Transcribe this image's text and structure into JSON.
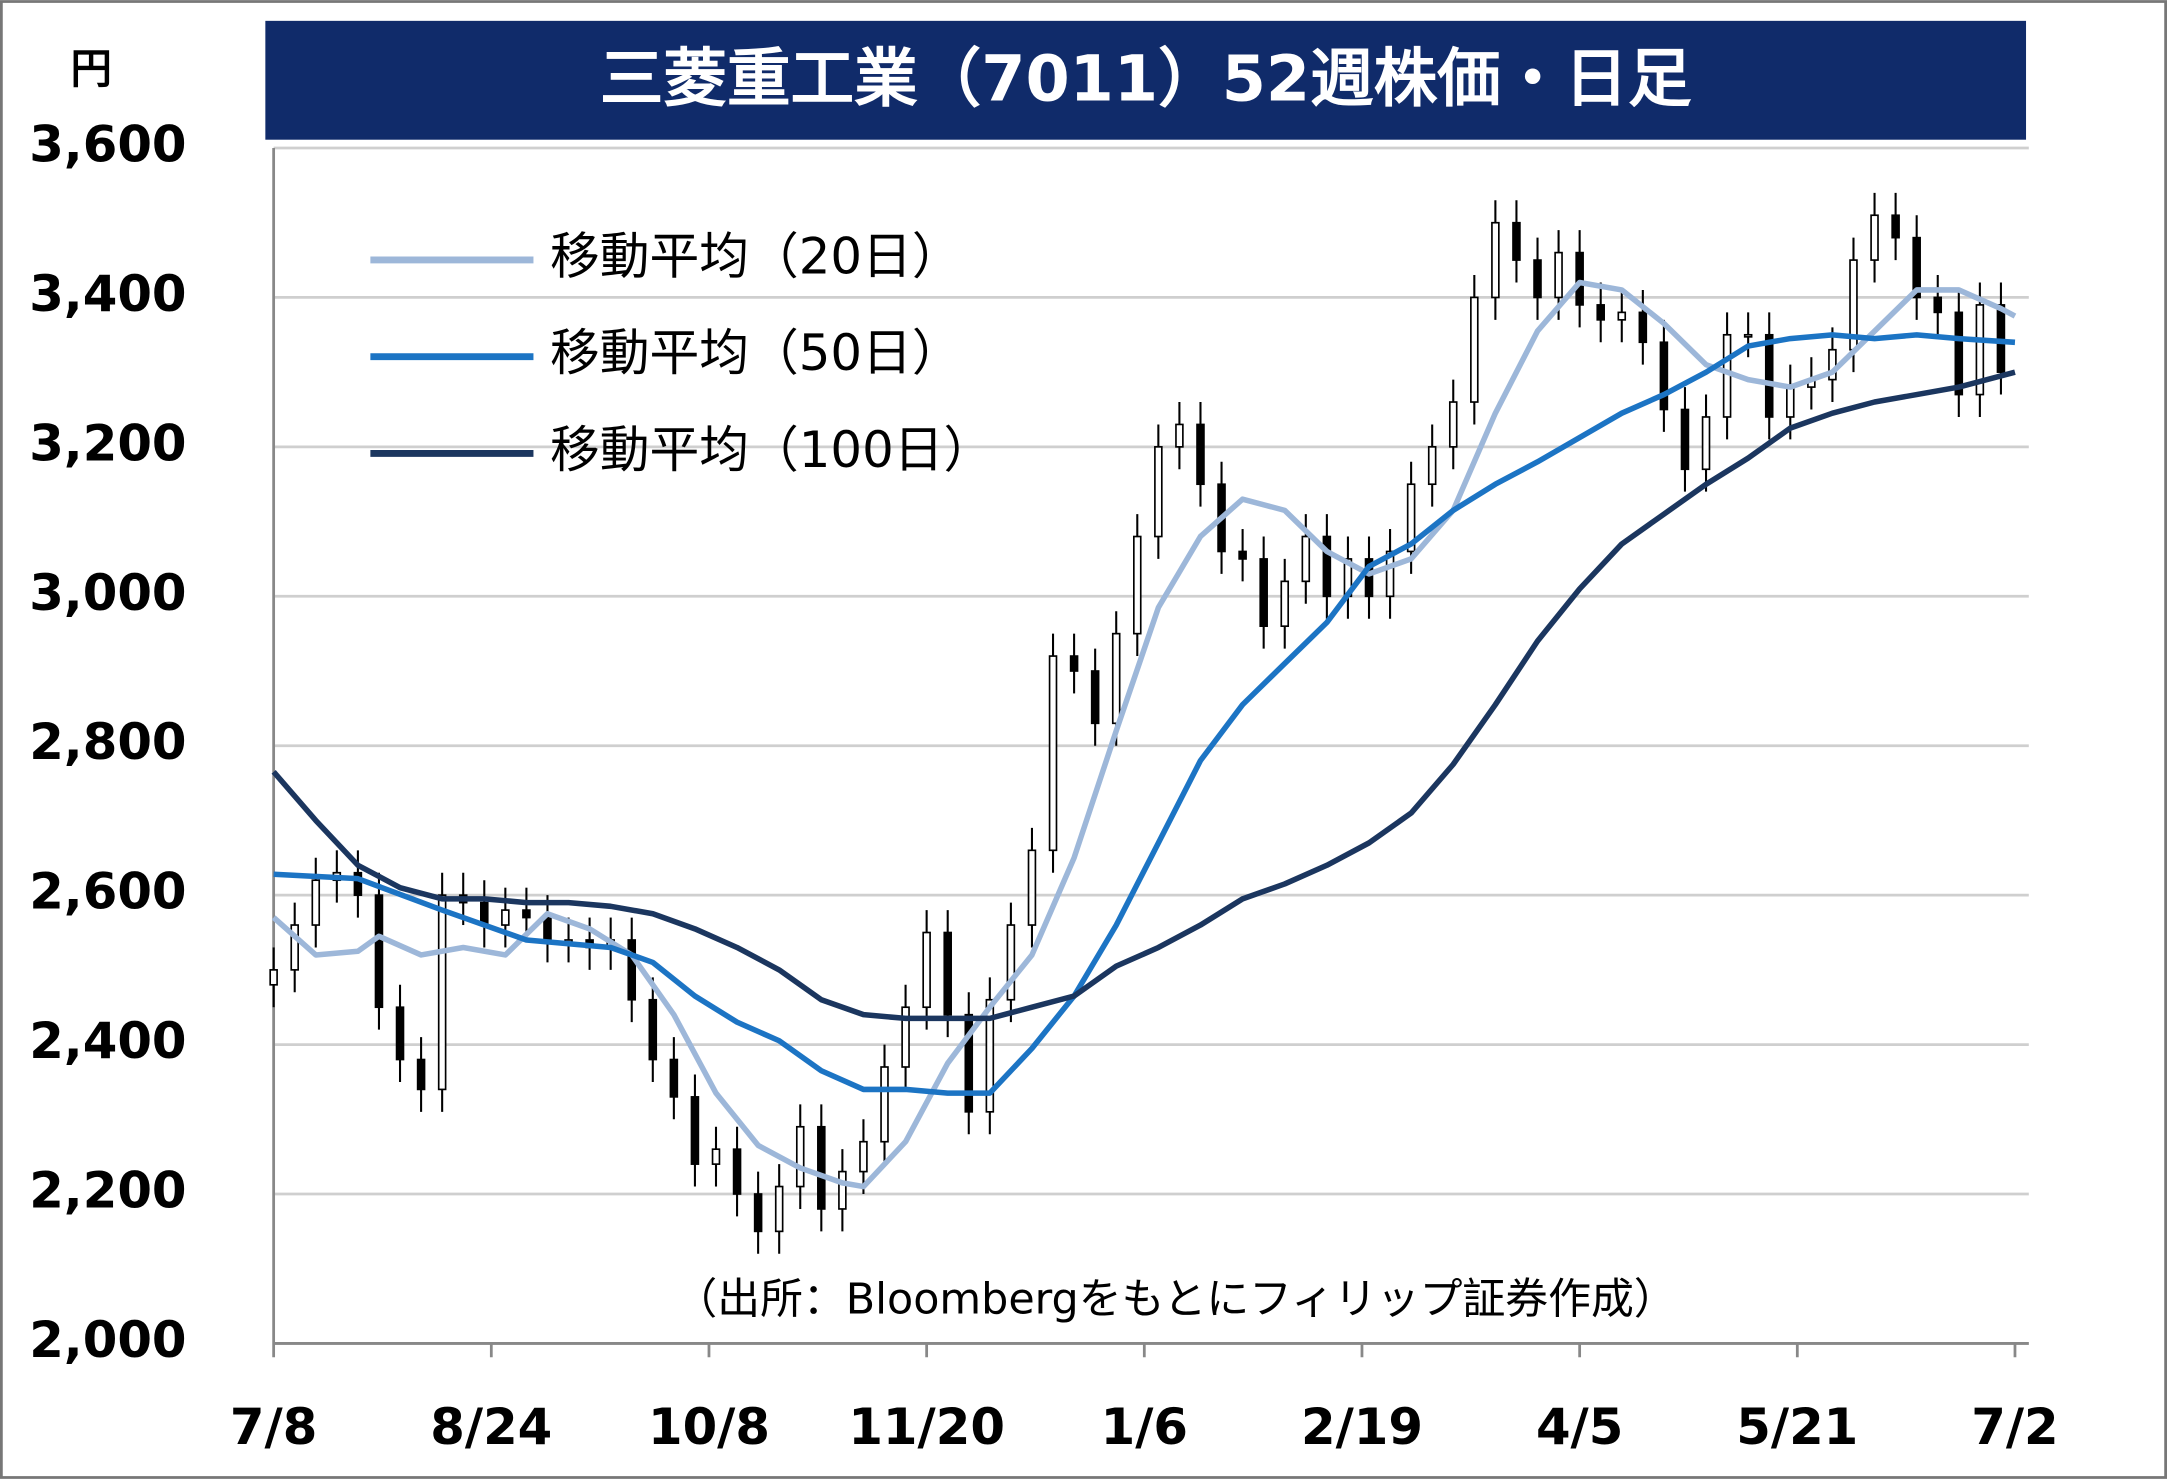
{
  "chart_data": {
    "type": "candlestick",
    "title": "三菱重工業（7011）52週株価・日足",
    "y_unit": "円",
    "source": "（出所：Bloombergをもとにフィリップ証券作成）",
    "xlim": [
      0,
      248
    ],
    "xticks": [
      {
        "value": 0,
        "label": "7/8"
      },
      {
        "value": 31,
        "label": "8/24"
      },
      {
        "value": 62,
        "label": "10/8"
      },
      {
        "value": 93,
        "label": "11/20"
      },
      {
        "value": 124,
        "label": "1/6"
      },
      {
        "value": 155,
        "label": "2/19"
      },
      {
        "value": 186,
        "label": "4/5"
      },
      {
        "value": 217,
        "label": "5/21"
      },
      {
        "value": 248,
        "label": "7/2"
      }
    ],
    "ylim": [
      2000,
      3600
    ],
    "yticks": [
      {
        "value": 2000,
        "label": "2,000"
      },
      {
        "value": 2200,
        "label": "2,200"
      },
      {
        "value": 2400,
        "label": "2,400"
      },
      {
        "value": 2600,
        "label": "2,600"
      },
      {
        "value": 2800,
        "label": "2,800"
      },
      {
        "value": 3000,
        "label": "3,000"
      },
      {
        "value": 3200,
        "label": "3,200"
      },
      {
        "value": 3400,
        "label": "3,400"
      },
      {
        "value": 3600,
        "label": "3,600"
      }
    ],
    "grid": true,
    "up_color": "#ffffff",
    "down_color": "#000000",
    "candles": {
      "x": [
        0,
        3,
        6,
        9,
        12,
        15,
        18,
        21,
        24,
        27,
        30,
        33,
        36,
        39,
        42,
        45,
        48,
        51,
        54,
        57,
        60,
        63,
        66,
        69,
        72,
        75,
        78,
        81,
        84,
        87,
        90,
        93,
        96,
        99,
        102,
        105,
        108,
        111,
        114,
        117,
        120,
        123,
        126,
        129,
        132,
        135,
        138,
        141,
        144,
        147,
        150,
        153,
        156,
        159,
        162,
        165,
        168,
        171,
        174,
        177,
        180,
        183,
        186,
        189,
        192,
        195,
        198,
        201,
        204,
        207,
        210,
        213,
        216,
        219,
        222,
        225,
        228,
        231,
        234,
        237,
        240,
        243,
        246
      ],
      "open": [
        2480,
        2500,
        2560,
        2620,
        2630,
        2600,
        2450,
        2380,
        2340,
        2600,
        2590,
        2560,
        2580,
        2570,
        2540,
        2540,
        2530,
        2540,
        2460,
        2380,
        2330,
        2240,
        2260,
        2200,
        2150,
        2210,
        2290,
        2180,
        2230,
        2270,
        2370,
        2450,
        2550,
        2440,
        2310,
        2460,
        2560,
        2660,
        2920,
        2900,
        2830,
        2950,
        3080,
        3200,
        3230,
        3150,
        3060,
        3050,
        2960,
        3020,
        3080,
        3000,
        3050,
        3000,
        3060,
        3150,
        3200,
        3260,
        3400,
        3500,
        3450,
        3400,
        3460,
        3390,
        3370,
        3380,
        3340,
        3250,
        3170,
        3240,
        3350,
        3350,
        3240,
        3280,
        3290,
        3330,
        3450,
        3510,
        3480,
        3400,
        3380,
        3270,
        3390
      ],
      "high": [
        2530,
        2590,
        2650,
        2660,
        2660,
        2630,
        2480,
        2410,
        2630,
        2630,
        2620,
        2610,
        2610,
        2600,
        2570,
        2570,
        2570,
        2570,
        2490,
        2410,
        2360,
        2290,
        2290,
        2230,
        2240,
        2320,
        2320,
        2260,
        2300,
        2400,
        2480,
        2580,
        2580,
        2470,
        2490,
        2590,
        2690,
        2950,
        2950,
        2930,
        2980,
        3110,
        3230,
        3260,
        3260,
        3180,
        3090,
        3080,
        3050,
        3110,
        3110,
        3080,
        3080,
        3090,
        3180,
        3230,
        3290,
        3430,
        3530,
        3530,
        3480,
        3490,
        3490,
        3420,
        3410,
        3410,
        3370,
        3280,
        3270,
        3380,
        3380,
        3380,
        3310,
        3320,
        3360,
        3480,
        3540,
        3540,
        3510,
        3430,
        3410,
        3420,
        3420
      ],
      "low": [
        2450,
        2470,
        2530,
        2590,
        2570,
        2420,
        2350,
        2310,
        2310,
        2560,
        2530,
        2530,
        2540,
        2510,
        2510,
        2500,
        2500,
        2430,
        2350,
        2300,
        2210,
        2210,
        2170,
        2120,
        2120,
        2180,
        2150,
        2150,
        2200,
        2240,
        2340,
        2420,
        2410,
        2280,
        2280,
        2430,
        2530,
        2630,
        2870,
        2800,
        2800,
        2920,
        3050,
        3170,
        3120,
        3030,
        3020,
        2930,
        2930,
        2990,
        2970,
        2970,
        2970,
        2970,
        3030,
        3120,
        3170,
        3230,
        3370,
        3420,
        3370,
        3370,
        3360,
        3340,
        3340,
        3310,
        3220,
        3140,
        3140,
        3210,
        3320,
        3210,
        3210,
        3250,
        3260,
        3300,
        3420,
        3450,
        3370,
        3350,
        3240,
        3240,
        3270
      ],
      "close": [
        2500,
        2560,
        2620,
        2630,
        2600,
        2450,
        2380,
        2340,
        2600,
        2590,
        2560,
        2580,
        2570,
        2540,
        2540,
        2530,
        2540,
        2460,
        2380,
        2330,
        2240,
        2260,
        2200,
        2150,
        2210,
        2290,
        2180,
        2230,
        2270,
        2370,
        2450,
        2550,
        2440,
        2310,
        2460,
        2560,
        2660,
        2920,
        2900,
        2830,
        2950,
        3080,
        3200,
        3230,
        3150,
        3060,
        3050,
        2960,
        3020,
        3080,
        3000,
        3050,
        3000,
        3060,
        3150,
        3200,
        3260,
        3400,
        3500,
        3450,
        3400,
        3460,
        3390,
        3370,
        3380,
        3340,
        3250,
        3170,
        3240,
        3350,
        3350,
        3240,
        3280,
        3290,
        3330,
        3450,
        3510,
        3480,
        3400,
        3380,
        3270,
        3390,
        3300
      ]
    },
    "series": [
      {
        "name": "移動平均（20日）",
        "color": "#9db7d9",
        "x": [
          0,
          6,
          12,
          15,
          21,
          27,
          33,
          39,
          45,
          51,
          57,
          63,
          69,
          75,
          81,
          84,
          90,
          96,
          102,
          108,
          114,
          120,
          126,
          132,
          138,
          144,
          150,
          156,
          162,
          168,
          174,
          180,
          186,
          192,
          198,
          204,
          210,
          216,
          222,
          228,
          234,
          240,
          246,
          248
        ],
        "values": [
          2570,
          2520,
          2525,
          2545,
          2520,
          2530,
          2520,
          2575,
          2555,
          2520,
          2440,
          2335,
          2265,
          2235,
          2215,
          2210,
          2270,
          2375,
          2450,
          2520,
          2650,
          2820,
          2985,
          3080,
          3130,
          3115,
          3060,
          3030,
          3050,
          3115,
          3245,
          3355,
          3420,
          3410,
          3365,
          3310,
          3290,
          3280,
          3300,
          3355,
          3410,
          3410,
          3385,
          3375
        ]
      },
      {
        "name": "移動平均（50日）",
        "color": "#1c74c4",
        "x": [
          0,
          12,
          24,
          36,
          48,
          54,
          60,
          66,
          72,
          78,
          84,
          90,
          96,
          102,
          108,
          114,
          120,
          126,
          132,
          138,
          144,
          150,
          156,
          162,
          168,
          174,
          180,
          192,
          198,
          204,
          210,
          216,
          222,
          228,
          234,
          240,
          248
        ],
        "values": [
          2628,
          2622,
          2580,
          2540,
          2530,
          2510,
          2465,
          2430,
          2405,
          2365,
          2340,
          2340,
          2335,
          2335,
          2395,
          2465,
          2560,
          2670,
          2780,
          2855,
          2910,
          2965,
          3040,
          3070,
          3115,
          3150,
          3180,
          3245,
          3270,
          3300,
          3335,
          3345,
          3350,
          3345,
          3350,
          3345,
          3340
        ]
      },
      {
        "name": "移動平均（100日）",
        "color": "#1b365f",
        "x": [
          0,
          6,
          12,
          18,
          24,
          30,
          36,
          42,
          48,
          54,
          60,
          66,
          72,
          78,
          84,
          90,
          96,
          102,
          108,
          114,
          120,
          126,
          132,
          138,
          144,
          150,
          156,
          162,
          168,
          174,
          180,
          186,
          192,
          198,
          204,
          210,
          216,
          222,
          228,
          234,
          240,
          248
        ],
        "values": [
          2765,
          2700,
          2640,
          2610,
          2595,
          2595,
          2590,
          2590,
          2585,
          2575,
          2555,
          2530,
          2500,
          2460,
          2440,
          2435,
          2435,
          2435,
          2450,
          2465,
          2505,
          2530,
          2560,
          2595,
          2615,
          2640,
          2670,
          2710,
          2775,
          2855,
          2940,
          3010,
          3070,
          3110,
          3150,
          3185,
          3225,
          3245,
          3260,
          3270,
          3280,
          3300
        ]
      }
    ]
  }
}
